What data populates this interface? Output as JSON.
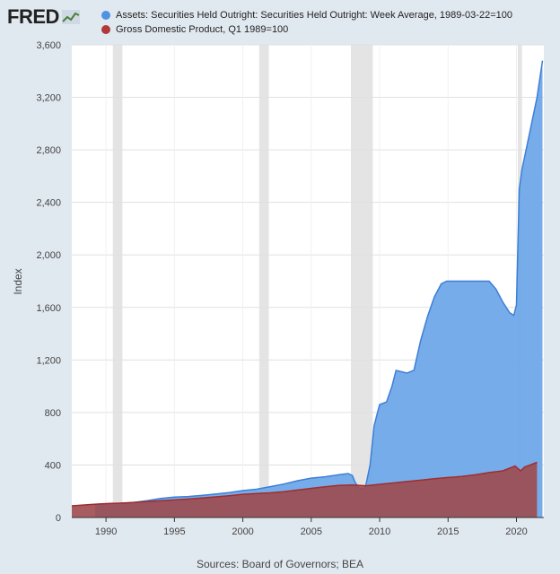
{
  "header": {
    "logo": "FRED",
    "logo_icon": "fred-chart-icon"
  },
  "legend": [
    {
      "label": "Assets: Securities Held Outright: Securities Held Outright: Week Average, 1989-03-22=100",
      "color": "#4f93e3"
    },
    {
      "label": "Gross Domestic Product, Q1 1989=100",
      "color": "#b03a3a"
    }
  ],
  "source": "Sources: Board of Governors; BEA",
  "colors": {
    "assets_fill": "#6fa8e8",
    "assets_line": "#3d7fd6",
    "gdp_fill": "#9e4a4f",
    "gdp_line": "#a02d2d",
    "recession": "#e4e4e4",
    "grid": "#e0e0e0"
  },
  "chart_data": {
    "type": "area",
    "title": "",
    "xlabel": "",
    "ylabel": "Index",
    "xlim": [
      1987.5,
      2022.0
    ],
    "ylim": [
      0,
      3600
    ],
    "x_ticks": [
      1990,
      1995,
      2000,
      2005,
      2010,
      2015,
      2020
    ],
    "y_ticks": [
      0,
      400,
      800,
      1200,
      1600,
      2000,
      2400,
      2800,
      3200,
      3600
    ],
    "y_tick_labels": [
      "0",
      "400",
      "800",
      "1,200",
      "1,600",
      "2,000",
      "2,400",
      "2,800",
      "3,200",
      "3,600"
    ],
    "recessions": [
      [
        1990.5,
        1991.2
      ],
      [
        2001.2,
        2001.9
      ],
      [
        2007.9,
        2009.5
      ],
      [
        2020.1,
        2020.4
      ]
    ],
    "series": [
      {
        "name": "Assets: Securities Held Outright: Securities Held Outright: Week Average, 1989-03-22=100",
        "x": [
          1989.2,
          1990,
          1991,
          1992,
          1993,
          1994,
          1995,
          1996,
          1997,
          1998,
          1999,
          2000,
          2001,
          2002,
          2003,
          2004,
          2005,
          2006,
          2007,
          2007.7,
          2008.0,
          2008.2,
          2008.5,
          2008.9,
          2009.0,
          2009.3,
          2009.6,
          2010.0,
          2010.5,
          2010.9,
          2011.2,
          2011.6,
          2012.0,
          2012.5,
          2013.0,
          2013.5,
          2014.0,
          2014.5,
          2014.9,
          2015.5,
          2016.0,
          2016.5,
          2017.0,
          2017.5,
          2018.0,
          2018.5,
          2019.0,
          2019.5,
          2019.8,
          2020.0,
          2020.2,
          2020.4,
          2020.6,
          2021.0,
          2021.5,
          2021.9
        ],
        "values": [
          100,
          104,
          108,
          115,
          128,
          145,
          155,
          160,
          168,
          178,
          190,
          205,
          215,
          235,
          255,
          280,
          300,
          310,
          325,
          335,
          320,
          270,
          220,
          220,
          250,
          400,
          700,
          860,
          880,
          1000,
          1120,
          1110,
          1100,
          1120,
          1350,
          1530,
          1680,
          1780,
          1800,
          1800,
          1800,
          1800,
          1800,
          1800,
          1800,
          1740,
          1640,
          1560,
          1540,
          1620,
          2500,
          2650,
          2750,
          2950,
          3200,
          3480
        ]
      },
      {
        "name": "Gross Domestic Product, Q1 1989=100",
        "x": [
          1987.5,
          1989,
          1990,
          1991,
          1992,
          1993,
          1994,
          1995,
          1996,
          1997,
          1998,
          1999,
          2000,
          2001,
          2002,
          2003,
          2004,
          2005,
          2006,
          2007,
          2008,
          2009,
          2010,
          2011,
          2012,
          2013,
          2014,
          2015,
          2016,
          2017,
          2018,
          2019,
          2019.9,
          2020.3,
          2020.6,
          2021,
          2021.5
        ],
        "values": [
          89,
          100,
          106,
          109,
          115,
          121,
          128,
          134,
          141,
          149,
          157,
          166,
          177,
          183,
          188,
          196,
          209,
          222,
          234,
          244,
          248,
          242,
          253,
          263,
          274,
          284,
          296,
          305,
          312,
          325,
          342,
          355,
          392,
          355,
          385,
          400,
          420
        ]
      }
    ]
  }
}
